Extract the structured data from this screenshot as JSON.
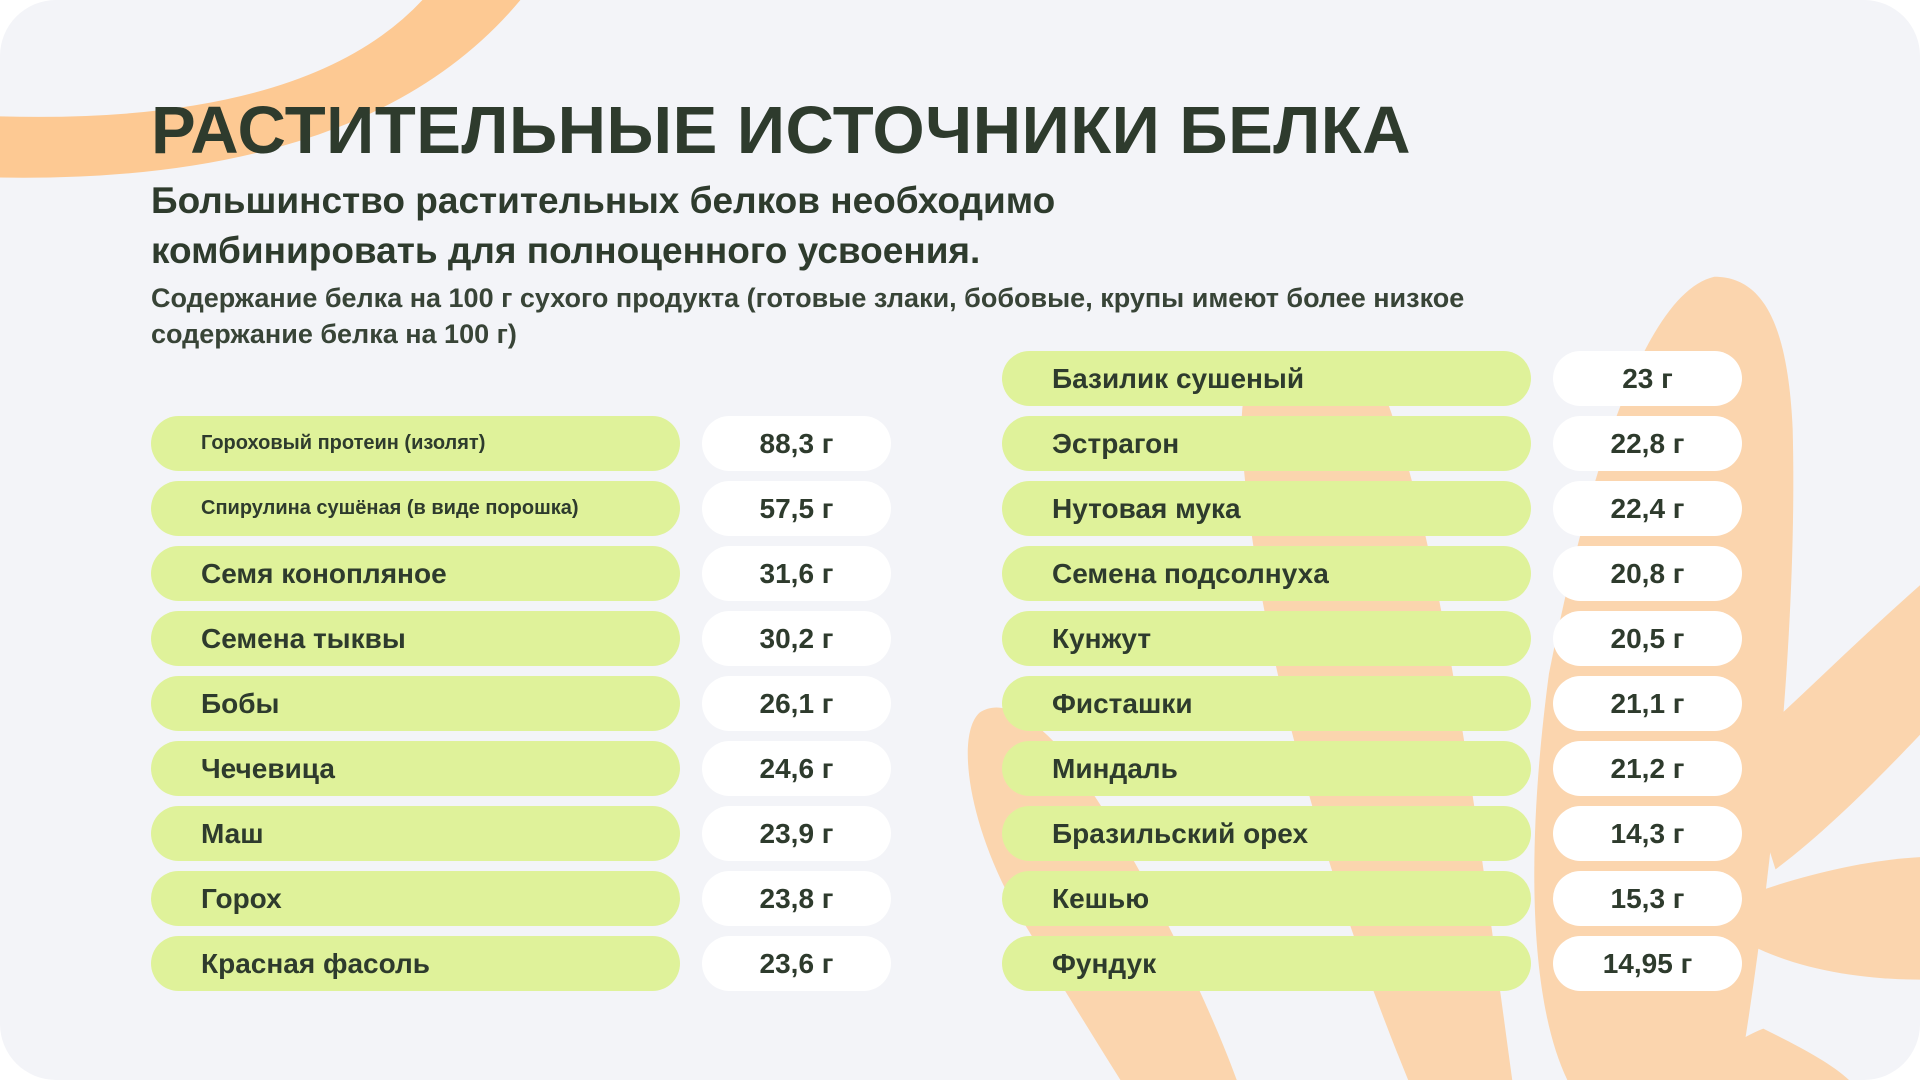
{
  "title": "РАСТИТЕЛЬНЫЕ ИСТОЧНИКИ БЕЛКА",
  "subtitle": "Большинство растительных белков необходимо комбинировать для полноценного усвоения.",
  "note": "Содержание белка на 100 г сухого продукта (готовые злаки, бобовые, крупы имеют более низкое содержание белка на 100 г)",
  "colors": {
    "background": "#f3f4f8",
    "pill": "#dff29a",
    "value_pill": "#ffffff",
    "text": "#2e3b2d",
    "decor": "#fbd5ae",
    "decor_arc": "#fdc993"
  },
  "left_table": [
    {
      "name": "Гороховый протеин (изолят)",
      "value": "88,3 г"
    },
    {
      "name": "Спирулина сушёная (в виде порошка)",
      "value": "57,5 г"
    },
    {
      "name": "Семя конопляное",
      "value": "31,6 г"
    },
    {
      "name": "Семена тыквы",
      "value": "30,2 г"
    },
    {
      "name": "Бобы",
      "value": "26,1 г"
    },
    {
      "name": "Чечевица",
      "value": "24,6 г"
    },
    {
      "name": "Маш",
      "value": "23,9 г"
    },
    {
      "name": "Горох",
      "value": "23,8 г"
    },
    {
      "name": "Красная фасоль",
      "value": "23,6 г"
    }
  ],
  "right_table": [
    {
      "name": "Базилик сушеный",
      "value": "23 г"
    },
    {
      "name": "Эстрагон",
      "value": "22,8 г"
    },
    {
      "name": "Нутовая мука",
      "value": "22,4 г"
    },
    {
      "name": "Семена подсолнуха",
      "value": "20,8 г"
    },
    {
      "name": "Кунжут",
      "value": "20,5 г"
    },
    {
      "name": "Фисташки",
      "value": "21,1 г"
    },
    {
      "name": "Миндаль",
      "value": "21,2 г"
    },
    {
      "name": "Бразильский орех",
      "value": "14,3 г"
    },
    {
      "name": "Кешью",
      "value": "15,3 г"
    },
    {
      "name": "Фундук",
      "value": "14,95 г"
    }
  ]
}
